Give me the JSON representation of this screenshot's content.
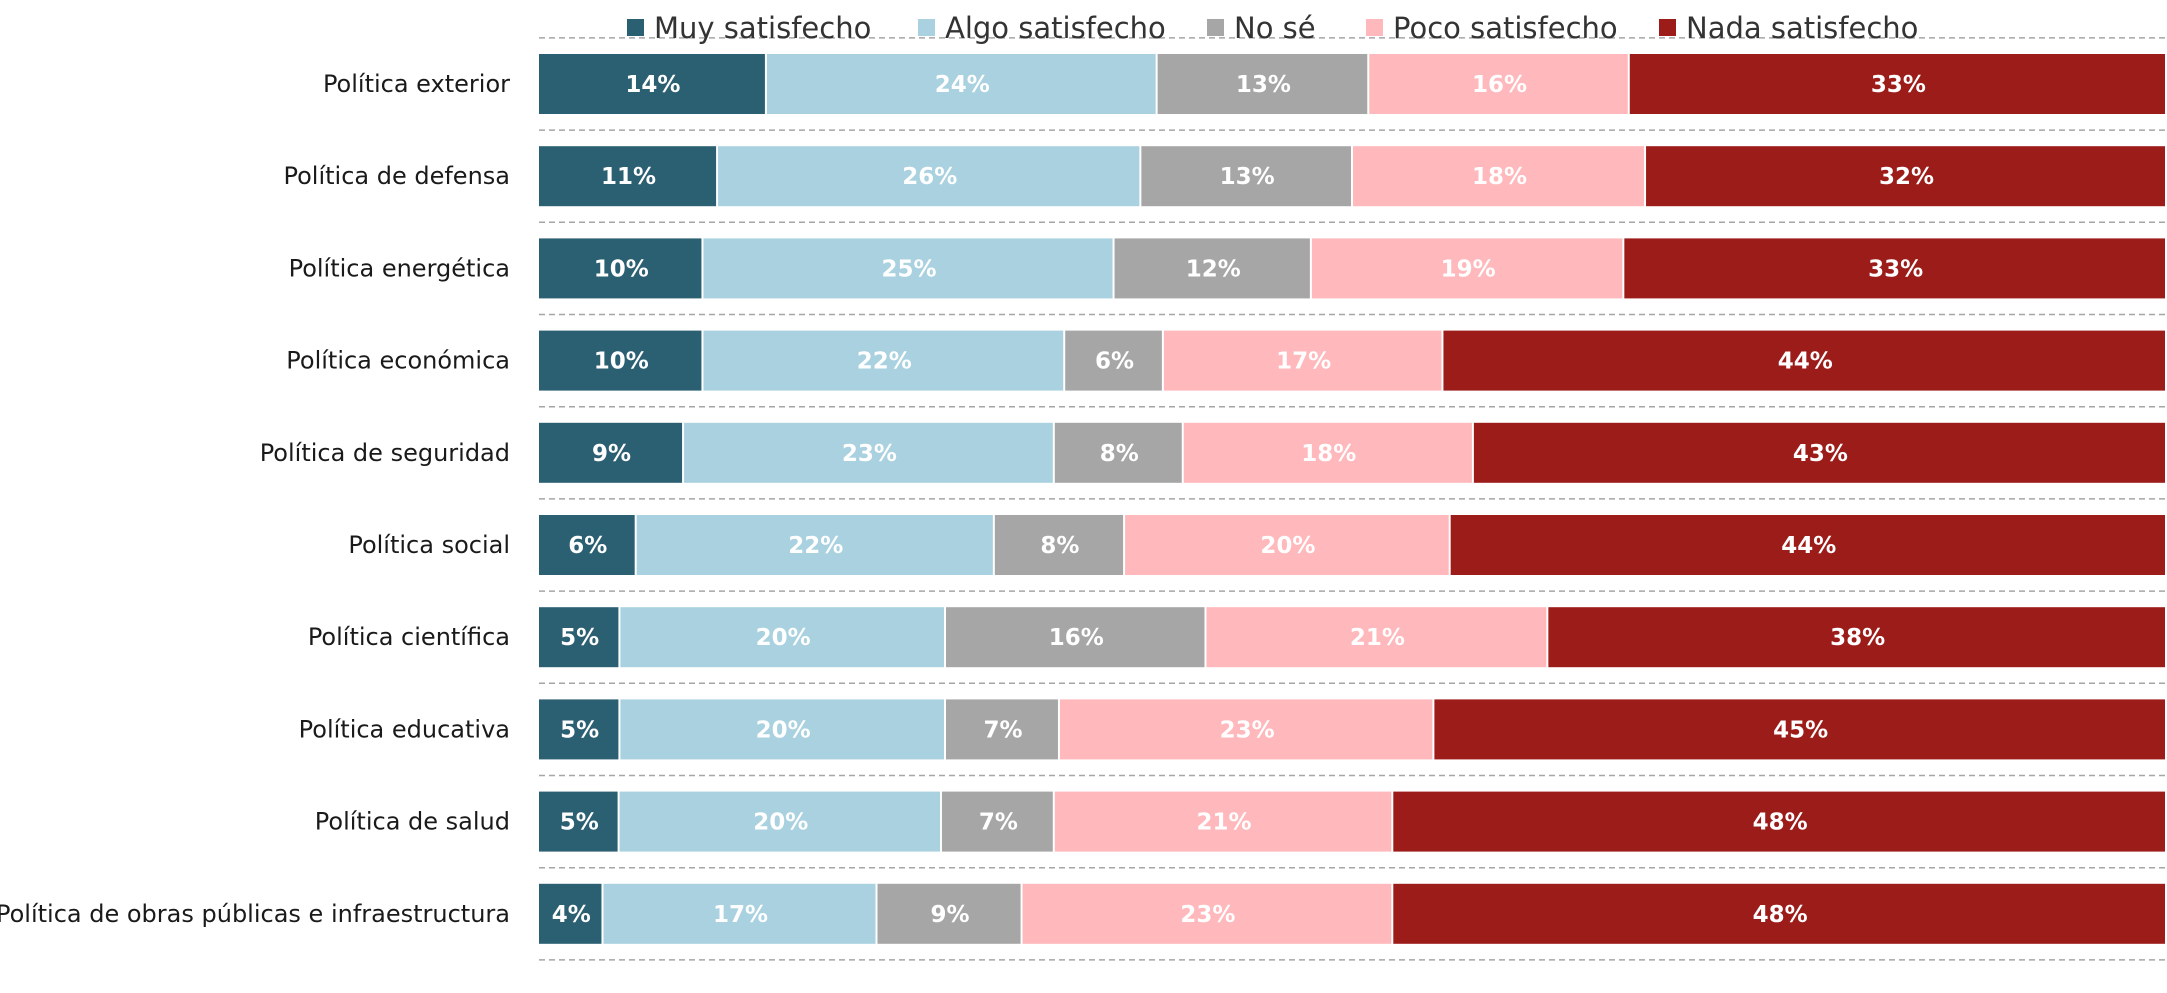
{
  "chart_data": {
    "type": "bar",
    "orientation": "horizontal",
    "stacked": true,
    "title": "",
    "xlabel": "",
    "ylabel": "",
    "xlim": [
      0,
      100
    ],
    "unit": "%",
    "legend_position": "top",
    "grid": true,
    "categories": [
      "Política exterior",
      "Política de defensa",
      "Política energética",
      "Política económica",
      "Política de seguridad",
      "Política social",
      "Política científica",
      "Política educativa",
      "Política de salud",
      "Política de obras públicas e infraestructura"
    ],
    "series": [
      {
        "name": "Muy satisfecho",
        "color": "#2b5f72",
        "values": [
          14,
          11,
          10,
          10,
          9,
          6,
          5,
          5,
          5,
          4
        ]
      },
      {
        "name": "Algo satisfecho",
        "color": "#a9d1df",
        "values": [
          24,
          26,
          25,
          22,
          23,
          22,
          20,
          20,
          20,
          17
        ]
      },
      {
        "name": "No sé",
        "color": "#a6a6a6",
        "values": [
          13,
          13,
          12,
          6,
          8,
          8,
          16,
          7,
          7,
          9
        ]
      },
      {
        "name": "Poco satisfecho",
        "color": "#ffb8bc",
        "values": [
          16,
          18,
          19,
          17,
          18,
          20,
          21,
          23,
          21,
          23
        ]
      },
      {
        "name": "Nada satisfecho",
        "color": "#9c1c1a",
        "values": [
          33,
          32,
          33,
          44,
          43,
          44,
          38,
          45,
          48,
          48
        ]
      }
    ]
  }
}
